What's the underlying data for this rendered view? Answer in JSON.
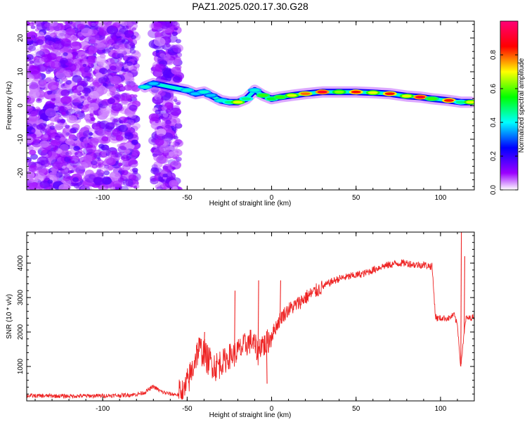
{
  "figure_title": "PAZ1.2025.020.17.30.G28",
  "chart_data": [
    {
      "type": "heatmap",
      "title": "PAZ1.2025.020.17.30.G28",
      "xlabel": "Height of straight line (km)",
      "ylabel": "Frequency (Hz)",
      "xlim": [
        -145,
        120
      ],
      "ylim": [
        -25,
        25
      ],
      "xticks": [
        -100,
        -50,
        0,
        50,
        100
      ],
      "yticks": [
        -20,
        -10,
        0,
        10,
        20
      ],
      "grid": false,
      "colorbar": {
        "label": "Normalized spectral amplitude",
        "range": [
          0,
          1
        ],
        "ticks": [
          0.0,
          0.2,
          0.4,
          0.6,
          0.8
        ],
        "tick_labels": [
          "0.0",
          "0.2",
          "0.4",
          "0.6",
          "0.8"
        ],
        "colors": [
          "#ffffff",
          "#9b00ff",
          "#0000ff",
          "#00ffff",
          "#00ff00",
          "#ffff00",
          "#ff0000",
          "#ff0077"
        ]
      },
      "noise_regions": [
        {
          "x_range": [
            -145,
            -80
          ],
          "y_range": [
            -25,
            25
          ],
          "level": 0.18
        },
        {
          "x_range": [
            -70,
            -55
          ],
          "y_range": [
            -25,
            25
          ],
          "level": 0.18
        }
      ],
      "ridge": [
        {
          "x": -75,
          "y": 5.5,
          "amp": 0.45
        },
        {
          "x": -70,
          "y": 6.5,
          "amp": 0.4
        },
        {
          "x": -50,
          "y": 4.5,
          "amp": 0.45
        },
        {
          "x": -45,
          "y": 3.5,
          "amp": 0.4
        },
        {
          "x": -40,
          "y": 4.0,
          "amp": 0.45
        },
        {
          "x": -36,
          "y": 3.0,
          "amp": 0.4
        },
        {
          "x": -30,
          "y": 1.5,
          "amp": 0.45
        },
        {
          "x": -25,
          "y": 1.0,
          "amp": 0.5
        },
        {
          "x": -20,
          "y": 1.0,
          "amp": 0.7
        },
        {
          "x": -15,
          "y": 2.0,
          "amp": 0.5
        },
        {
          "x": -10,
          "y": 4.5,
          "amp": 0.45
        },
        {
          "x": -5,
          "y": 3.0,
          "amp": 0.6
        },
        {
          "x": 0,
          "y": 2.0,
          "amp": 0.55
        },
        {
          "x": 5,
          "y": 2.5,
          "amp": 0.6
        },
        {
          "x": 12,
          "y": 3.0,
          "amp": 0.7
        },
        {
          "x": 20,
          "y": 3.5,
          "amp": 0.8
        },
        {
          "x": 30,
          "y": 4.0,
          "amp": 0.9
        },
        {
          "x": 40,
          "y": 4.0,
          "amp": 0.65
        },
        {
          "x": 50,
          "y": 4.0,
          "amp": 0.85
        },
        {
          "x": 60,
          "y": 3.8,
          "amp": 0.7
        },
        {
          "x": 70,
          "y": 3.5,
          "amp": 0.85
        },
        {
          "x": 80,
          "y": 2.8,
          "amp": 0.7
        },
        {
          "x": 88,
          "y": 2.5,
          "amp": 0.9
        },
        {
          "x": 95,
          "y": 2.0,
          "amp": 0.6
        },
        {
          "x": 105,
          "y": 1.5,
          "amp": 0.85
        },
        {
          "x": 112,
          "y": 1.0,
          "amp": 0.5
        },
        {
          "x": 118,
          "y": 1.0,
          "amp": 0.7
        }
      ]
    },
    {
      "type": "line",
      "xlabel": "Height of straight line (km)",
      "ylabel": "SNR (10 * v/v)",
      "xlim": [
        -145,
        120
      ],
      "ylim": [
        0,
        4900
      ],
      "xticks": [
        -100,
        -50,
        0,
        50,
        100
      ],
      "yticks": [
        1000,
        2000,
        3000,
        4000
      ],
      "grid": false,
      "line_color": "#ee2222",
      "series": [
        {
          "x": [
            -145,
            -120,
            -100,
            -90,
            -80,
            -75,
            -72,
            -70,
            -68,
            -65,
            -60,
            -55,
            -52,
            -50,
            -47,
            -45,
            -43,
            -40,
            -38,
            -35,
            -33,
            -30,
            -27,
            -25,
            -22,
            -20,
            -17,
            -15,
            -12,
            -10,
            -8,
            -6,
            -4,
            -2,
            0,
            3,
            6,
            10,
            15,
            20,
            25,
            30,
            35,
            40,
            45,
            50,
            55,
            60,
            65,
            70,
            75,
            80,
            85,
            90,
            95,
            97,
            98,
            100,
            105,
            108,
            110,
            112,
            113,
            115,
            117,
            120
          ],
          "y": [
            150,
            140,
            150,
            160,
            190,
            250,
            350,
            420,
            350,
            260,
            200,
            180,
            250,
            500,
            900,
            1300,
            1500,
            1400,
            1200,
            1100,
            1000,
            1100,
            1200,
            1300,
            1350,
            1450,
            1550,
            1650,
            1750,
            1600,
            1400,
            1700,
            1600,
            1750,
            1900,
            2200,
            2450,
            2650,
            2800,
            3000,
            3150,
            3300,
            3450,
            3550,
            3600,
            3650,
            3700,
            3800,
            3900,
            3950,
            4000,
            4000,
            3950,
            3950,
            3900,
            2450,
            2400,
            2400,
            2400,
            2500,
            2200,
            1000,
            1500,
            2400,
            2400,
            2450
          ]
        }
      ],
      "spikes": [
        {
          "x": -40,
          "y": 2000
        },
        {
          "x": -22,
          "y": 3200
        },
        {
          "x": -8,
          "y": 3500
        },
        {
          "x": -3,
          "y": 500
        },
        {
          "x": 5,
          "y": 3500
        },
        {
          "x": 112,
          "y": 4900
        },
        {
          "x": 114,
          "y": 4200
        }
      ]
    }
  ]
}
